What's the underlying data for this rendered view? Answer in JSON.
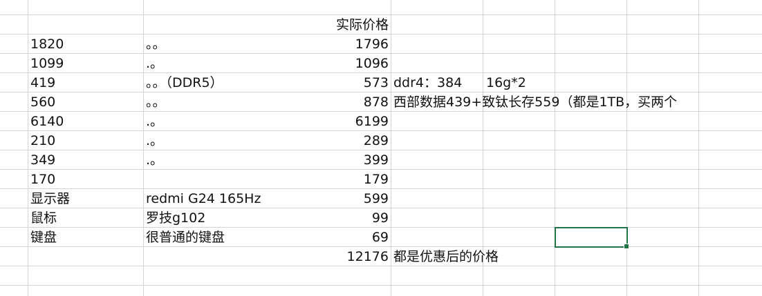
{
  "sheet": {
    "header_price": "实际价格",
    "rows": [
      {
        "a": "1820",
        "b": "。。",
        "c": "1796",
        "d": ""
      },
      {
        "a": "1099",
        "b": ".。",
        "c": "1096",
        "d": ""
      },
      {
        "a": "419",
        "b": "。。（DDR5）",
        "c": "573",
        "d": "ddr4：384",
        "e": "16g*2"
      },
      {
        "a": "560",
        "b": "。。",
        "c": "878",
        "d": "西部数据439+致钛长存559（都是1TB，买两个"
      },
      {
        "a": "6140",
        "b": ".。",
        "c": "6199",
        "d": ""
      },
      {
        "a": "210",
        "b": ".。",
        "c": "289",
        "d": ""
      },
      {
        "a": "349",
        "b": ".。",
        "c": "399",
        "d": ""
      },
      {
        "a": "170",
        "b": "",
        "c": "179",
        "d": ""
      },
      {
        "a": "显示器",
        "b": "redmi G24 165Hz",
        "c": "599",
        "d": ""
      },
      {
        "a": "鼠标",
        "b": "罗技g102",
        "c": "99",
        "d": ""
      },
      {
        "a": "键盘",
        "b": "很普通的键盘",
        "c": "69",
        "d": ""
      }
    ],
    "total": "12176",
    "total_note": "都是优惠后的价格",
    "selection_color": "#217346"
  }
}
